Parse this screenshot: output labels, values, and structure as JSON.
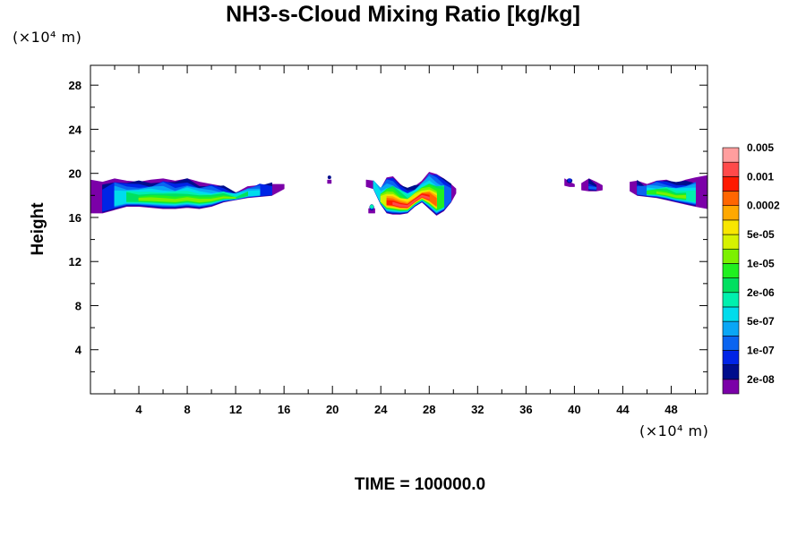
{
  "chart_data": {
    "type": "heatmap",
    "title": "NH3-s-Cloud Mixing Ratio [kg/kg]",
    "ylabel": "Height",
    "x_unit": "(×10⁴ m)",
    "y_unit": "(×10⁴ m)",
    "x_ticks": [
      "4",
      "8",
      "12",
      "16",
      "20",
      "24",
      "28",
      "32",
      "36",
      "40",
      "44",
      "48"
    ],
    "y_ticks": [
      "4",
      "8",
      "12",
      "16",
      "20",
      "24",
      "28"
    ],
    "xlim": [
      0,
      51
    ],
    "ylim": [
      0,
      29.8
    ],
    "grid": false,
    "annotation": "TIME = 100000.0",
    "colorbar": {
      "colors": [
        "#7b00a8",
        "#000d8c",
        "#0024e6",
        "#0a64f0",
        "#0aa6f5",
        "#00dcec",
        "#00f0ae",
        "#00e060",
        "#20f020",
        "#7cf000",
        "#d6f200",
        "#f8e600",
        "#ffa800",
        "#ff6600",
        "#ff1a00",
        "#ff4a4a",
        "#ff9e9e"
      ],
      "labels": [
        "2e-08",
        "1e-07",
        "5e-07",
        "2e-06",
        "1e-05",
        "5e-05",
        "0.0002",
        "0.001",
        "0.005"
      ],
      "label_positions": [
        1,
        3,
        5,
        7,
        9,
        11,
        13,
        15,
        17
      ]
    },
    "regions": [
      {
        "x": [
          0,
          1,
          2,
          3,
          4,
          5,
          6,
          7,
          8,
          9,
          10,
          11,
          12,
          13,
          14,
          15,
          16
        ],
        "top": [
          19.4,
          19.2,
          19.5,
          19.3,
          19.2,
          19.4,
          19.5,
          19.3,
          19.5,
          19.2,
          19.0,
          18.8,
          18.2,
          18.8,
          18.9,
          19.0,
          19.0
        ],
        "bottom": [
          16.4,
          16.4,
          16.7,
          17.0,
          17.0,
          16.9,
          16.8,
          16.8,
          16.9,
          16.8,
          17.0,
          17.4,
          17.6,
          17.8,
          17.9,
          18.0,
          18.6
        ],
        "peak": 0.55
      },
      {
        "x": [
          22.8,
          23.4,
          24,
          24.5,
          25,
          25.6,
          26.2,
          26.8,
          27.4,
          28,
          28.6,
          29.2,
          29.8,
          30.2
        ],
        "top": [
          19.4,
          19.3,
          18.6,
          19.6,
          19.7,
          19.0,
          18.5,
          18.8,
          19.3,
          20.1,
          19.9,
          19.5,
          19.0,
          18.6
        ],
        "bottom": [
          18.8,
          18.6,
          17.2,
          16.4,
          16.3,
          16.3,
          16.4,
          17.0,
          17.4,
          16.8,
          16.2,
          16.6,
          17.4,
          18.2
        ],
        "peak": 0.95
      },
      {
        "x": [
          23,
          23.5
        ],
        "top": [
          16.8,
          16.8
        ],
        "bottom": [
          16.4,
          16.4
        ],
        "peak": 0.4
      },
      {
        "x": [
          39.2,
          39.6,
          40.0
        ],
        "top": [
          19.5,
          19.2,
          19.0
        ],
        "bottom": [
          18.9,
          18.8,
          18.8
        ],
        "peak": 0.12
      },
      {
        "x": [
          40.6,
          41.2,
          41.8,
          42.3
        ],
        "top": [
          19.1,
          19.5,
          19.2,
          18.9
        ],
        "bottom": [
          18.5,
          18.4,
          18.4,
          18.5
        ],
        "peak": 0.2
      },
      {
        "x": [
          44.6,
          45.2,
          46,
          46.8,
          47.6,
          48.4,
          49.2,
          50,
          51
        ],
        "top": [
          19.2,
          19.3,
          19.0,
          19.3,
          19.4,
          19.1,
          19.4,
          19.6,
          19.8
        ],
        "bottom": [
          18.4,
          18.0,
          17.9,
          17.8,
          17.6,
          17.4,
          17.2,
          17.0,
          16.8
        ],
        "peak": 0.55
      },
      {
        "x": [
          19.6,
          19.9
        ],
        "top": [
          19.4,
          19.4
        ],
        "bottom": [
          19.1,
          19.1
        ],
        "peak": 0.05
      }
    ]
  }
}
